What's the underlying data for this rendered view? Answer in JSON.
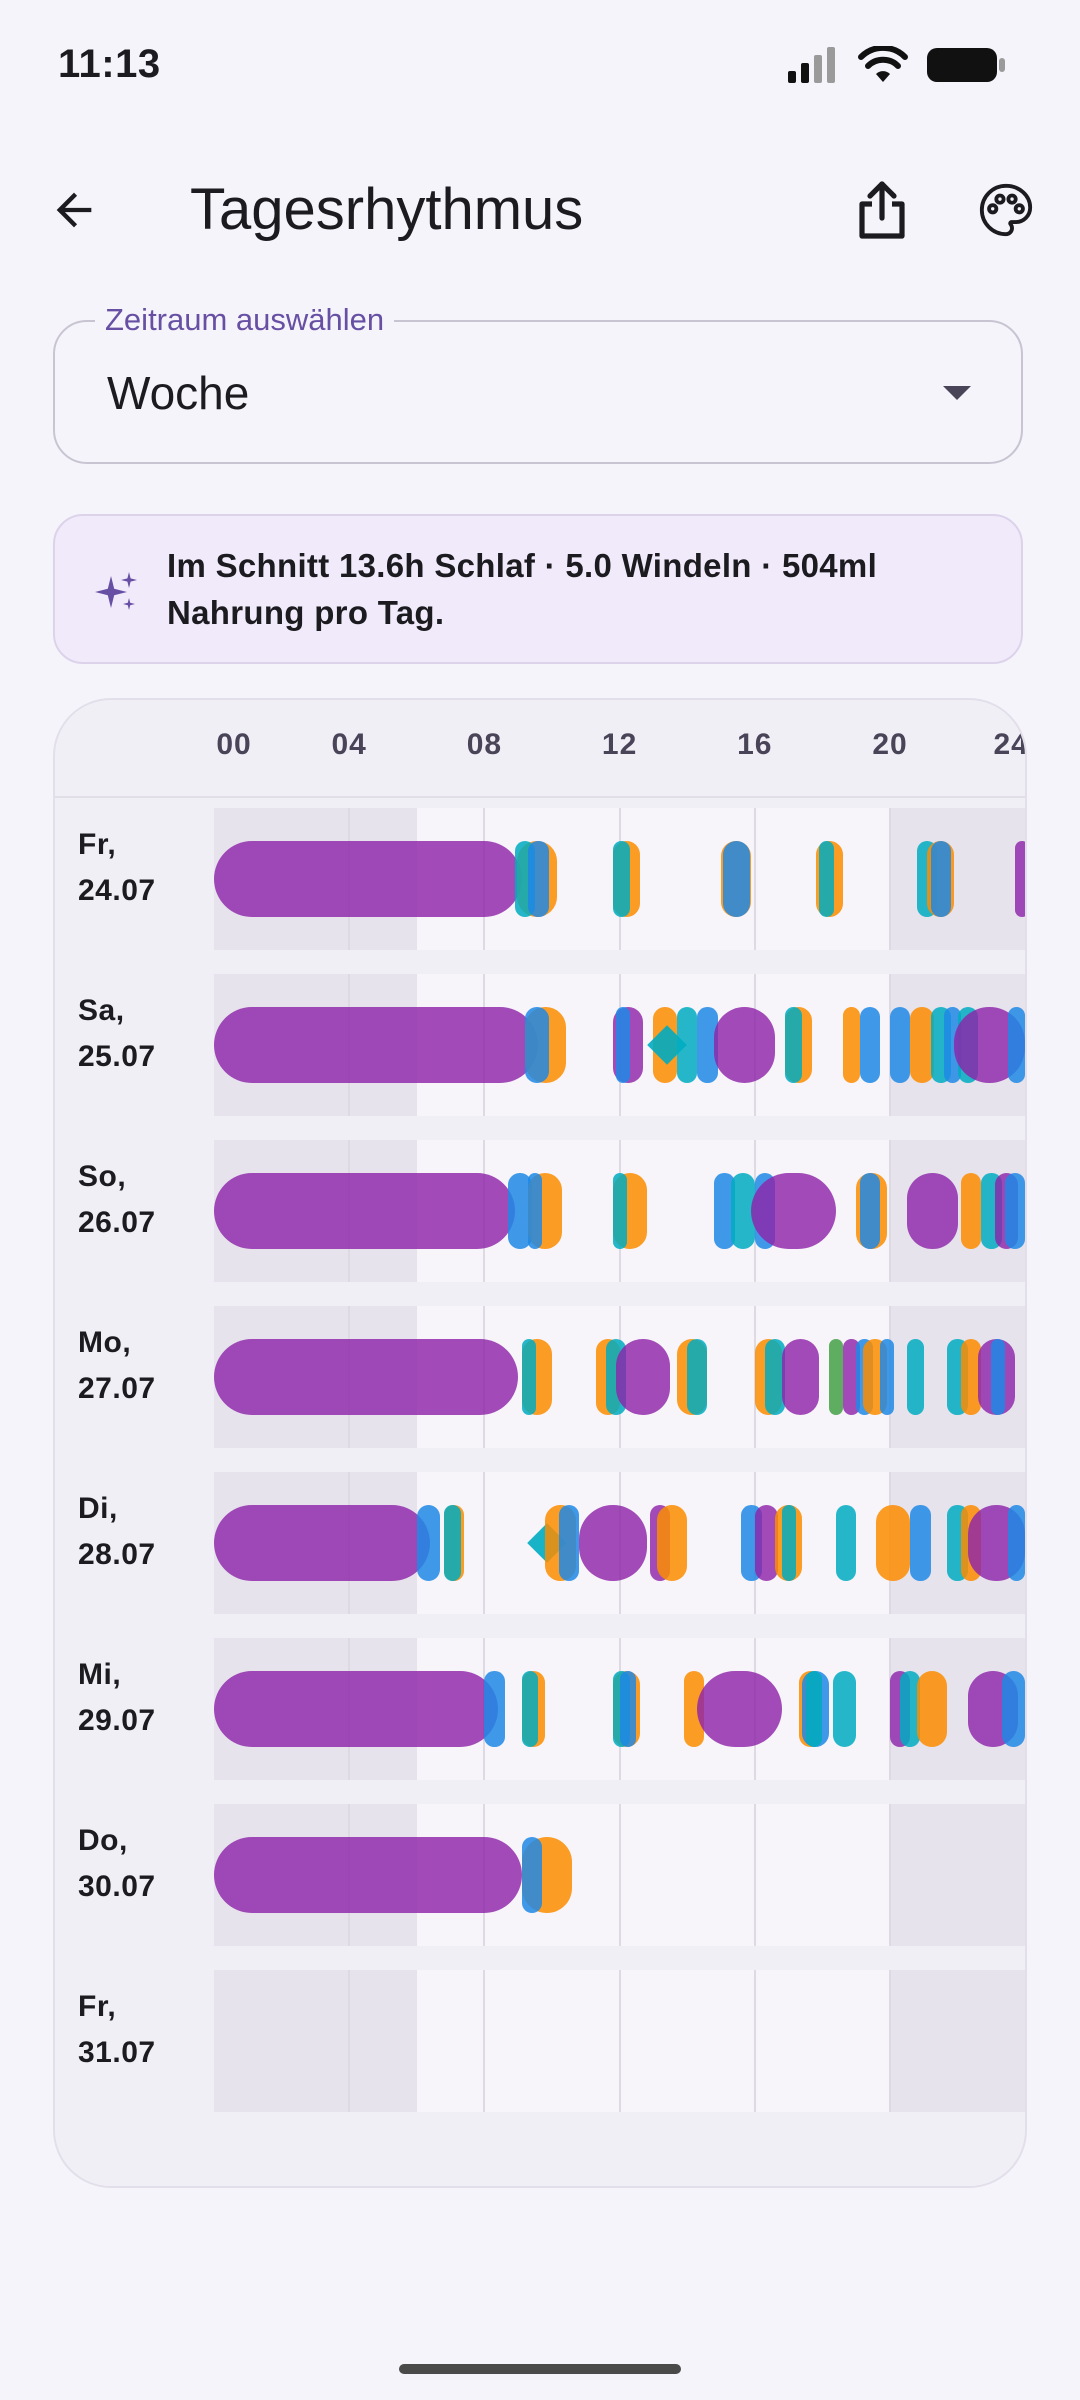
{
  "status_bar": {
    "time": "11:13"
  },
  "app_bar": {
    "title": "Tagesrhythmus"
  },
  "range_select": {
    "label": "Zeitraum auswählen",
    "value": "Woche"
  },
  "summary": {
    "text": "Im Schnitt 13.6h Schlaf · 5.0 Windeln · 504ml Nahrung pro Tag."
  },
  "colors": {
    "sleep": "#8E24AA",
    "feeding": "#FB8C00",
    "diaper": "#1E88E5",
    "care": "#00ACC1",
    "other": "#43A047",
    "accent": "#6750A4",
    "night_shade": "#E6E3EC",
    "day_shade": "#F7F5F9"
  },
  "chart_data": {
    "type": "timeline",
    "x_unit": "hour",
    "x_range": [
      0,
      24
    ],
    "tick_labels": [
      "00",
      "04",
      "08",
      "12",
      "16",
      "20",
      "24"
    ],
    "tick_hours": [
      0,
      4,
      8,
      12,
      16,
      20,
      24
    ],
    "gridline_hours": [
      4,
      8,
      12,
      16,
      20
    ],
    "night_hours": [
      [
        0,
        6
      ],
      [
        20,
        24
      ]
    ],
    "days": [
      {
        "label": "Fr,\n24.07",
        "events": [
          {
            "start": 0,
            "end": 9.1,
            "kind": "sleep",
            "pill": true
          },
          {
            "start": 8.95,
            "end": 10.15,
            "kind": "feeding"
          },
          {
            "start": 8.9,
            "end": 9.5,
            "kind": "care"
          },
          {
            "start": 9.3,
            "end": 9.9,
            "kind": "diaper"
          },
          {
            "start": 11.8,
            "end": 12.6,
            "kind": "feeding"
          },
          {
            "start": 11.8,
            "end": 12.3,
            "kind": "care"
          },
          {
            "start": 15.0,
            "end": 15.9,
            "kind": "feeding"
          },
          {
            "start": 15.05,
            "end": 15.85,
            "kind": "diaper"
          },
          {
            "start": 17.8,
            "end": 18.6,
            "kind": "feeding"
          },
          {
            "start": 17.9,
            "end": 18.35,
            "kind": "care"
          },
          {
            "start": 20.8,
            "end": 21.4,
            "kind": "care"
          },
          {
            "start": 21.1,
            "end": 21.9,
            "kind": "feeding"
          },
          {
            "start": 21.2,
            "end": 21.8,
            "kind": "diaper"
          },
          {
            "start": 23.7,
            "end": 24,
            "kind": "sleep"
          }
        ]
      },
      {
        "label": "Sa,\n25.07",
        "events": [
          {
            "start": 0,
            "end": 9.6,
            "kind": "sleep",
            "pill": true
          },
          {
            "start": 9.2,
            "end": 10.4,
            "kind": "feeding"
          },
          {
            "start": 9.2,
            "end": 9.9,
            "kind": "diaper"
          },
          {
            "start": 11.8,
            "end": 12.7,
            "kind": "sleep"
          },
          {
            "start": 11.9,
            "end": 12.2,
            "kind": "diaper"
          },
          {
            "start": 13.0,
            "end": 13.7,
            "kind": "feeding"
          },
          {
            "start": 13.1,
            "end": 13.7,
            "kind": "care",
            "diamond": true
          },
          {
            "start": 13.7,
            "end": 14.3,
            "kind": "care"
          },
          {
            "start": 14.3,
            "end": 14.9,
            "kind": "diaper"
          },
          {
            "start": 14.8,
            "end": 16.6,
            "kind": "sleep"
          },
          {
            "start": 16.9,
            "end": 17.7,
            "kind": "feeding"
          },
          {
            "start": 16.9,
            "end": 17.4,
            "kind": "care"
          },
          {
            "start": 18.6,
            "end": 19.1,
            "kind": "feeding"
          },
          {
            "start": 19.1,
            "end": 19.7,
            "kind": "diaper"
          },
          {
            "start": 20.0,
            "end": 20.6,
            "kind": "diaper"
          },
          {
            "start": 20.6,
            "end": 21.3,
            "kind": "feeding"
          },
          {
            "start": 21.2,
            "end": 21.8,
            "kind": "care"
          },
          {
            "start": 21.6,
            "end": 22.1,
            "kind": "diaper"
          },
          {
            "start": 22.0,
            "end": 22.6,
            "kind": "care"
          },
          {
            "start": 21.9,
            "end": 24,
            "kind": "sleep"
          },
          {
            "start": 23.5,
            "end": 24,
            "kind": "diaper"
          }
        ]
      },
      {
        "label": "So,\n26.07",
        "events": [
          {
            "start": 0,
            "end": 8.9,
            "kind": "sleep",
            "pill": true
          },
          {
            "start": 8.7,
            "end": 9.4,
            "kind": "diaper"
          },
          {
            "start": 9.3,
            "end": 10.3,
            "kind": "feeding"
          },
          {
            "start": 9.3,
            "end": 9.7,
            "kind": "diaper"
          },
          {
            "start": 11.8,
            "end": 12.8,
            "kind": "feeding"
          },
          {
            "start": 11.8,
            "end": 12.2,
            "kind": "care"
          },
          {
            "start": 14.8,
            "end": 15.4,
            "kind": "diaper"
          },
          {
            "start": 15.3,
            "end": 16.0,
            "kind": "care"
          },
          {
            "start": 16.0,
            "end": 16.6,
            "kind": "diaper"
          },
          {
            "start": 15.9,
            "end": 18.4,
            "kind": "sleep"
          },
          {
            "start": 19.0,
            "end": 19.9,
            "kind": "feeding"
          },
          {
            "start": 19.1,
            "end": 19.7,
            "kind": "diaper"
          },
          {
            "start": 20.5,
            "end": 22.0,
            "kind": "sleep"
          },
          {
            "start": 22.1,
            "end": 22.7,
            "kind": "feeding"
          },
          {
            "start": 22.7,
            "end": 23.3,
            "kind": "care"
          },
          {
            "start": 23.1,
            "end": 23.8,
            "kind": "sleep"
          },
          {
            "start": 23.4,
            "end": 24,
            "kind": "diaper"
          }
        ]
      },
      {
        "label": "Mo,\n27.07",
        "events": [
          {
            "start": 0,
            "end": 9.0,
            "kind": "sleep",
            "pill": true
          },
          {
            "start": 9.1,
            "end": 10.0,
            "kind": "feeding"
          },
          {
            "start": 9.1,
            "end": 9.4,
            "kind": "care"
          },
          {
            "start": 11.3,
            "end": 12.0,
            "kind": "feeding"
          },
          {
            "start": 11.6,
            "end": 12.2,
            "kind": "care"
          },
          {
            "start": 11.9,
            "end": 13.5,
            "kind": "sleep"
          },
          {
            "start": 13.7,
            "end": 14.6,
            "kind": "feeding"
          },
          {
            "start": 14.0,
            "end": 14.6,
            "kind": "care"
          },
          {
            "start": 16.0,
            "end": 16.8,
            "kind": "feeding"
          },
          {
            "start": 16.3,
            "end": 16.9,
            "kind": "care"
          },
          {
            "start": 16.8,
            "end": 17.9,
            "kind": "sleep"
          },
          {
            "start": 18.2,
            "end": 18.6,
            "kind": "other"
          },
          {
            "start": 18.6,
            "end": 19.1,
            "kind": "sleep"
          },
          {
            "start": 19.0,
            "end": 19.5,
            "kind": "diaper"
          },
          {
            "start": 19.2,
            "end": 19.9,
            "kind": "feeding"
          },
          {
            "start": 19.7,
            "end": 20.1,
            "kind": "diaper"
          },
          {
            "start": 20.5,
            "end": 21.0,
            "kind": "care"
          },
          {
            "start": 21.7,
            "end": 22.3,
            "kind": "care"
          },
          {
            "start": 22.1,
            "end": 22.7,
            "kind": "feeding"
          },
          {
            "start": 22.6,
            "end": 23.7,
            "kind": "sleep"
          },
          {
            "start": 23.0,
            "end": 23.4,
            "kind": "diaper"
          }
        ]
      },
      {
        "label": "Di,\n28.07",
        "events": [
          {
            "start": 0,
            "end": 6.4,
            "kind": "sleep",
            "pill": true
          },
          {
            "start": 6.0,
            "end": 6.7,
            "kind": "diaper"
          },
          {
            "start": 6.8,
            "end": 7.4,
            "kind": "feeding"
          },
          {
            "start": 6.8,
            "end": 7.3,
            "kind": "care"
          },
          {
            "start": 9.4,
            "end": 10.3,
            "kind": "care",
            "diamond": true
          },
          {
            "start": 9.8,
            "end": 10.7,
            "kind": "feeding"
          },
          {
            "start": 10.2,
            "end": 10.8,
            "kind": "diaper"
          },
          {
            "start": 10.8,
            "end": 12.8,
            "kind": "sleep"
          },
          {
            "start": 12.9,
            "end": 13.5,
            "kind": "sleep"
          },
          {
            "start": 13.1,
            "end": 14.0,
            "kind": "feeding"
          },
          {
            "start": 15.6,
            "end": 16.2,
            "kind": "diaper"
          },
          {
            "start": 16.0,
            "end": 16.7,
            "kind": "sleep"
          },
          {
            "start": 16.6,
            "end": 17.4,
            "kind": "feeding"
          },
          {
            "start": 16.8,
            "end": 17.2,
            "kind": "care"
          },
          {
            "start": 18.4,
            "end": 19.0,
            "kind": "care"
          },
          {
            "start": 19.6,
            "end": 20.6,
            "kind": "feeding"
          },
          {
            "start": 20.6,
            "end": 21.2,
            "kind": "diaper"
          },
          {
            "start": 21.7,
            "end": 22.3,
            "kind": "care"
          },
          {
            "start": 22.1,
            "end": 22.7,
            "kind": "feeding"
          },
          {
            "start": 22.3,
            "end": 24,
            "kind": "sleep"
          },
          {
            "start": 23.5,
            "end": 24,
            "kind": "diaper"
          }
        ]
      },
      {
        "label": "Mi,\n29.07",
        "events": [
          {
            "start": 0,
            "end": 8.4,
            "kind": "sleep",
            "pill": true
          },
          {
            "start": 8.0,
            "end": 8.6,
            "kind": "diaper"
          },
          {
            "start": 9.1,
            "end": 9.8,
            "kind": "feeding"
          },
          {
            "start": 9.1,
            "end": 9.6,
            "kind": "care"
          },
          {
            "start": 11.8,
            "end": 12.6,
            "kind": "feeding"
          },
          {
            "start": 11.8,
            "end": 12.3,
            "kind": "care"
          },
          {
            "start": 12.0,
            "end": 12.5,
            "kind": "diaper"
          },
          {
            "start": 13.9,
            "end": 14.5,
            "kind": "feeding"
          },
          {
            "start": 14.3,
            "end": 16.8,
            "kind": "sleep"
          },
          {
            "start": 17.3,
            "end": 18.0,
            "kind": "feeding"
          },
          {
            "start": 17.4,
            "end": 18.2,
            "kind": "diaper"
          },
          {
            "start": 17.5,
            "end": 18.0,
            "kind": "care"
          },
          {
            "start": 18.3,
            "end": 19.0,
            "kind": "care"
          },
          {
            "start": 20.0,
            "end": 20.6,
            "kind": "sleep"
          },
          {
            "start": 20.3,
            "end": 20.9,
            "kind": "care"
          },
          {
            "start": 20.8,
            "end": 21.7,
            "kind": "feeding"
          },
          {
            "start": 22.3,
            "end": 23.8,
            "kind": "sleep"
          },
          {
            "start": 23.3,
            "end": 24,
            "kind": "diaper"
          }
        ]
      },
      {
        "label": "Do,\n30.07",
        "events": [
          {
            "start": 0,
            "end": 9.1,
            "kind": "sleep",
            "pill": true
          },
          {
            "start": 9.1,
            "end": 10.6,
            "kind": "feeding"
          },
          {
            "start": 9.1,
            "end": 9.7,
            "kind": "diaper"
          }
        ]
      },
      {
        "label": "Fr,\n31.07",
        "events": []
      }
    ]
  }
}
